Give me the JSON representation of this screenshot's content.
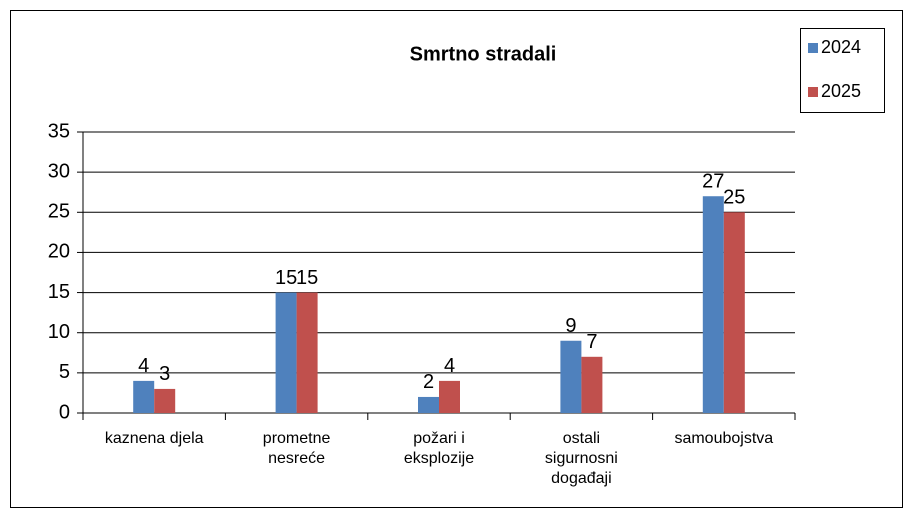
{
  "chart_data": {
    "type": "bar",
    "title": "Smrtno stradali",
    "categories": [
      "kaznena djela",
      "prometne\nnesreće",
      "požari i\neksplozije",
      "ostali\nsigurnosni\ndogađaji",
      "samoubojstva"
    ],
    "series": [
      {
        "name": "2024",
        "color": "#4f81bd",
        "values": [
          4,
          15,
          2,
          9,
          27
        ]
      },
      {
        "name": "2025",
        "color": "#c0504d",
        "values": [
          3,
          15,
          4,
          7,
          25
        ]
      }
    ],
    "ylim": [
      0,
      35
    ],
    "yticks": [
      0,
      5,
      10,
      15,
      20,
      25,
      30,
      35
    ],
    "grid": true,
    "legend": "top-right"
  }
}
